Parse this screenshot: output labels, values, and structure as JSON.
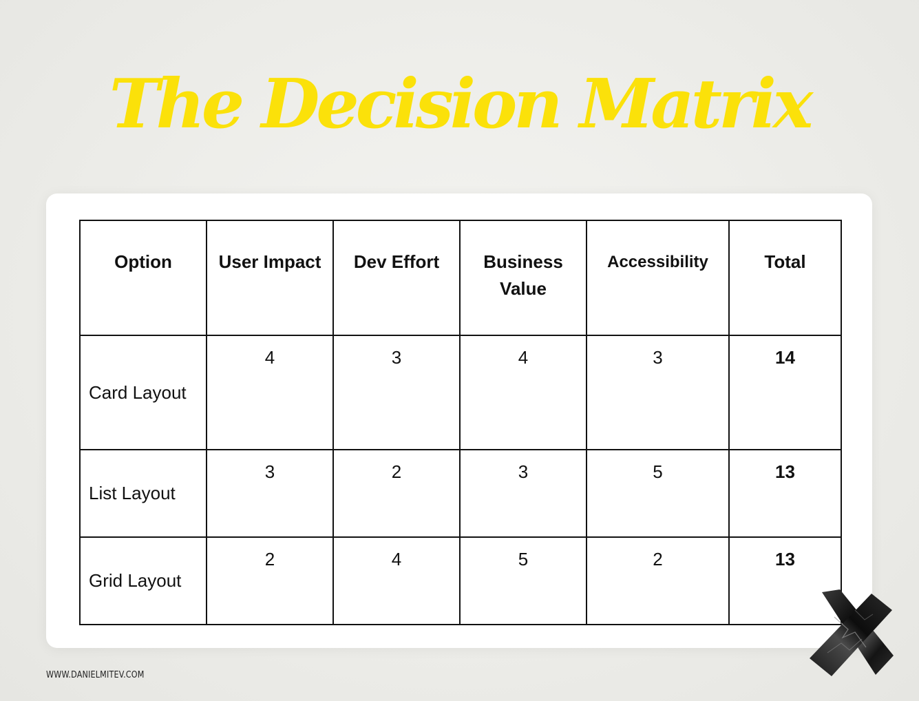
{
  "title": "The Decision Matrix",
  "colors": {
    "title": "#fbe10a",
    "background": "#ececE8",
    "card": "#ffffff",
    "grid": "#111111"
  },
  "table": {
    "headers": [
      "Option",
      "User Impact",
      "Dev Effort",
      "Business Value",
      "Accessibility",
      "Total"
    ],
    "rows": [
      {
        "option": "Card Layout",
        "user_impact": "4",
        "dev_effort": "3",
        "business_value": "4",
        "accessibility": "3",
        "total": "14"
      },
      {
        "option": "List Layout",
        "user_impact": "3",
        "dev_effort": "2",
        "business_value": "3",
        "accessibility": "5",
        "total": "13"
      },
      {
        "option": "Grid Layout",
        "user_impact": "2",
        "dev_effort": "4",
        "business_value": "5",
        "accessibility": "2",
        "total": "13"
      }
    ]
  },
  "footer": {
    "website": "WWW.DANIELMITEV.COM"
  },
  "decoration": {
    "icon": "black-tape-x-icon"
  }
}
